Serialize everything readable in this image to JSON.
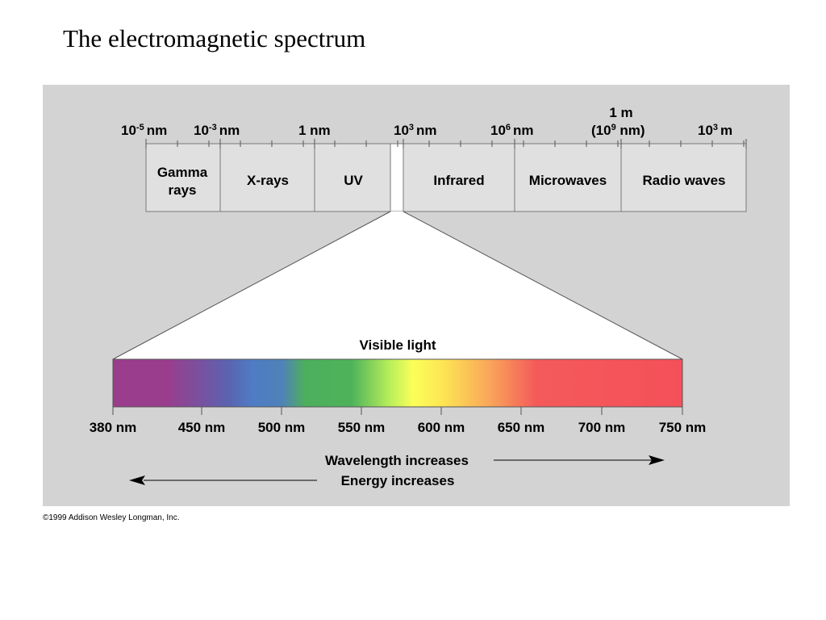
{
  "title": "The electromagnetic spectrum",
  "em_scale": {
    "ticks": [
      {
        "base": "10",
        "exp": "-5",
        "unit": "nm"
      },
      {
        "base": "10",
        "exp": "-3",
        "unit": "nm"
      },
      {
        "base": "",
        "exp": "",
        "unit": "1 nm"
      },
      {
        "base": "10",
        "exp": "3",
        "unit": "nm"
      },
      {
        "base": "10",
        "exp": "6",
        "unit": "nm"
      },
      {
        "base": "10",
        "exp": "3",
        "unit": "m"
      }
    ],
    "one_meter": {
      "line1": "1 m",
      "pre": "(10",
      "exp": "9",
      "post": " nm)"
    }
  },
  "bands": [
    {
      "name": "gamma",
      "label": [
        "Gamma",
        "rays"
      ]
    },
    {
      "name": "x-rays",
      "label": [
        "X-rays"
      ]
    },
    {
      "name": "uv",
      "label": [
        "UV"
      ]
    },
    {
      "name": "visible",
      "label": []
    },
    {
      "name": "infrared",
      "label": [
        "Infrared"
      ]
    },
    {
      "name": "microwaves",
      "label": [
        "Microwaves"
      ]
    },
    {
      "name": "radio",
      "label": [
        "Radio waves"
      ]
    }
  ],
  "visible": {
    "label": "Visible light",
    "ticks": [
      "380 nm",
      "450 nm",
      "500 nm",
      "550 nm",
      "600 nm",
      "650 nm",
      "700 nm",
      "750 nm"
    ],
    "gradient": [
      {
        "nm": 380,
        "color": "#9a3d8c"
      },
      {
        "nm": 415,
        "color": "#9a3d8c"
      },
      {
        "nm": 455,
        "color": "#5b63b0"
      },
      {
        "nm": 470,
        "color": "#4f7bc4"
      },
      {
        "nm": 490,
        "color": "#4f82b8"
      },
      {
        "nm": 505,
        "color": "#4daf5c"
      },
      {
        "nm": 535,
        "color": "#4db35a"
      },
      {
        "nm": 560,
        "color": "#b9ef5a"
      },
      {
        "nm": 575,
        "color": "#fbff59"
      },
      {
        "nm": 595,
        "color": "#fde453"
      },
      {
        "nm": 625,
        "color": "#f9a55a"
      },
      {
        "nm": 655,
        "color": "#f45a5a"
      },
      {
        "nm": 750,
        "color": "#f4505a"
      }
    ]
  },
  "arrows": {
    "wavelength": "Wavelength increases",
    "energy": "Energy increases"
  },
  "copyright": "©1999 Addison Wesley Longman, Inc."
}
